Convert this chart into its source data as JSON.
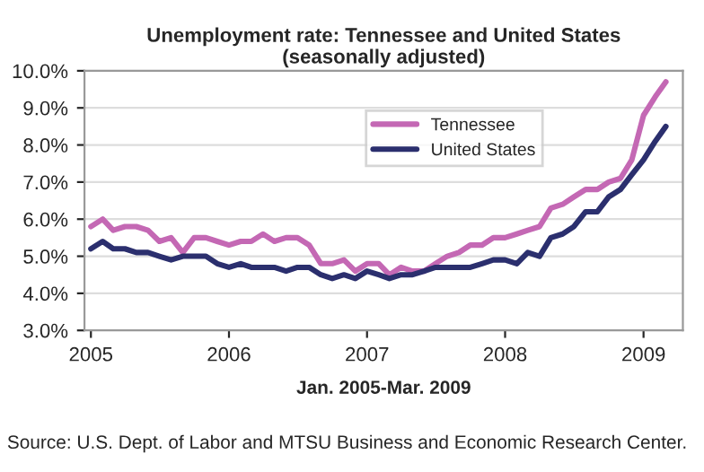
{
  "chart_data": {
    "type": "line",
    "title": "Unemployment rate: Tennessee and United States\n(seasonally adjusted)",
    "xlabel": "Jan. 2005-Mar. 2009",
    "x": [
      "2005-01",
      "2005-02",
      "2005-03",
      "2005-04",
      "2005-05",
      "2005-06",
      "2005-07",
      "2005-08",
      "2005-09",
      "2005-10",
      "2005-11",
      "2005-12",
      "2006-01",
      "2006-02",
      "2006-03",
      "2006-04",
      "2006-05",
      "2006-06",
      "2006-07",
      "2006-08",
      "2006-09",
      "2006-10",
      "2006-11",
      "2006-12",
      "2007-01",
      "2007-02",
      "2007-03",
      "2007-04",
      "2007-05",
      "2007-06",
      "2007-07",
      "2007-08",
      "2007-09",
      "2007-10",
      "2007-11",
      "2007-12",
      "2008-01",
      "2008-02",
      "2008-03",
      "2008-04",
      "2008-05",
      "2008-06",
      "2008-07",
      "2008-08",
      "2008-09",
      "2008-10",
      "2008-11",
      "2008-12",
      "2009-01",
      "2009-02",
      "2009-03"
    ],
    "series": [
      {
        "name": "Tennessee",
        "color": "#c468b4",
        "values": [
          5.8,
          6.0,
          5.7,
          5.8,
          5.8,
          5.7,
          5.4,
          5.5,
          5.1,
          5.5,
          5.5,
          5.4,
          5.3,
          5.4,
          5.4,
          5.6,
          5.4,
          5.5,
          5.5,
          5.3,
          4.8,
          4.8,
          4.9,
          4.6,
          4.8,
          4.8,
          4.5,
          4.7,
          4.6,
          4.6,
          4.8,
          5.0,
          5.1,
          5.3,
          5.3,
          5.5,
          5.5,
          5.6,
          5.7,
          5.8,
          6.3,
          6.4,
          6.6,
          6.8,
          6.8,
          7.0,
          7.1,
          7.6,
          8.8,
          9.3,
          9.7
        ]
      },
      {
        "name": "United States",
        "color": "#2b2f6e",
        "values": [
          5.2,
          5.4,
          5.2,
          5.2,
          5.1,
          5.1,
          5.0,
          4.9,
          5.0,
          5.0,
          5.0,
          4.8,
          4.7,
          4.8,
          4.7,
          4.7,
          4.7,
          4.6,
          4.7,
          4.7,
          4.5,
          4.4,
          4.5,
          4.4,
          4.6,
          4.5,
          4.4,
          4.5,
          4.5,
          4.6,
          4.7,
          4.7,
          4.7,
          4.7,
          4.8,
          4.9,
          4.9,
          4.8,
          5.1,
          5.0,
          5.5,
          5.6,
          5.8,
          6.2,
          6.2,
          6.6,
          6.8,
          7.2,
          7.6,
          8.1,
          8.5
        ]
      }
    ],
    "xlim": [
      "2004-12-15",
      "2009-04-15"
    ],
    "xticks": [
      {
        "value": "2005-01",
        "label": "2005"
      },
      {
        "value": "2006-01",
        "label": "2006"
      },
      {
        "value": "2007-01",
        "label": "2007"
      },
      {
        "value": "2008-01",
        "label": "2008"
      },
      {
        "value": "2009-01",
        "label": "2009"
      }
    ],
    "ylim": [
      3,
      10
    ],
    "yticks": [
      {
        "value": 3,
        "label": "3.0%"
      },
      {
        "value": 4,
        "label": "4.0%"
      },
      {
        "value": 5,
        "label": "5.0%"
      },
      {
        "value": 6,
        "label": "6.0%"
      },
      {
        "value": 7,
        "label": "7.0%"
      },
      {
        "value": 8,
        "label": "8.0%"
      },
      {
        "value": 9,
        "label": "9.0%"
      },
      {
        "value": 10,
        "label": "10.0%"
      }
    ],
    "grid": "y",
    "legend": "top right",
    "marker": "none",
    "line_style": "solid",
    "annotations": [
      "Source: U.S. Dept. of Labor and MTSU Business and Economic Research Center."
    ]
  }
}
